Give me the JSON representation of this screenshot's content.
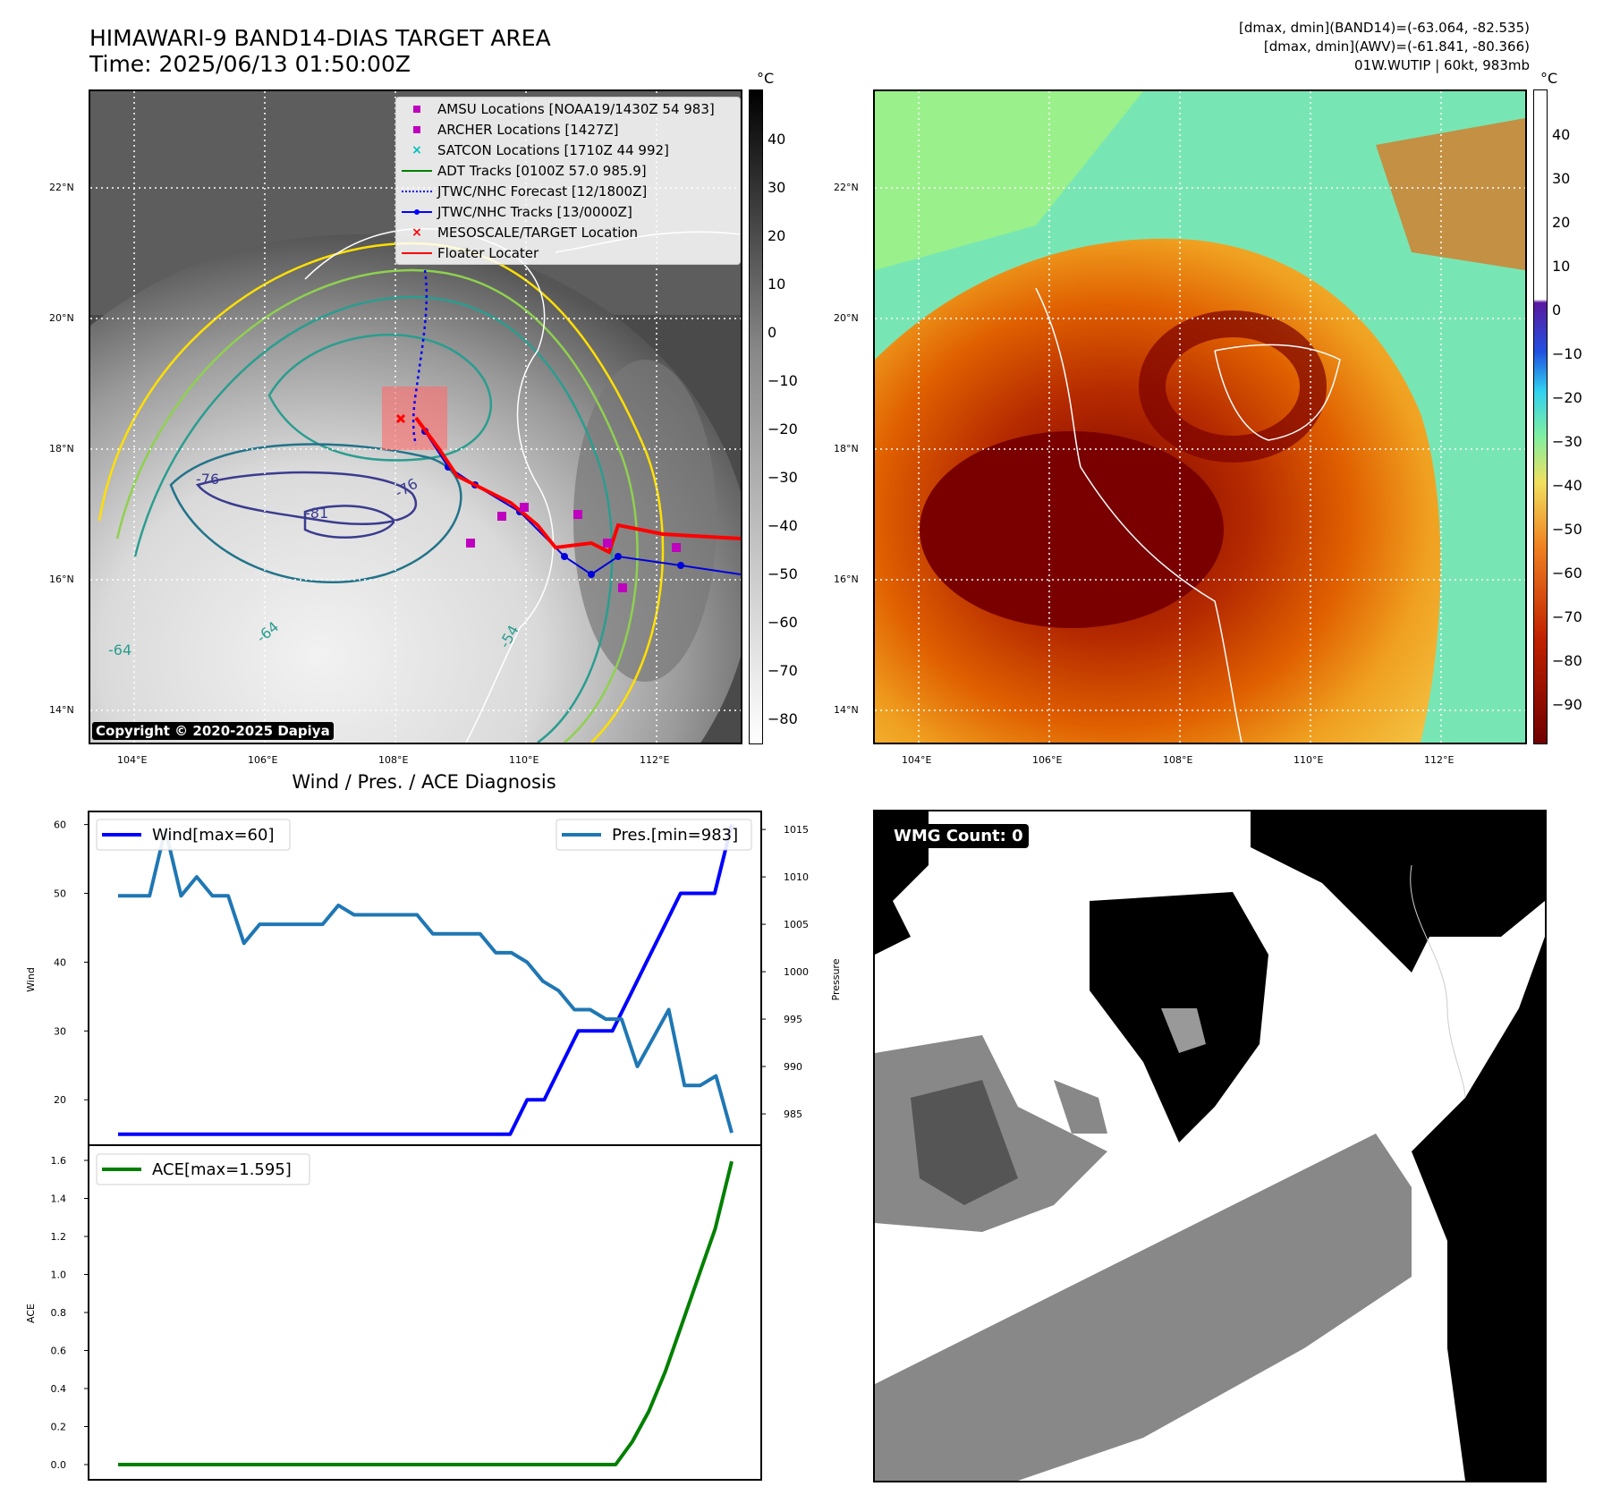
{
  "header": {
    "title_line1": "HIMAWARI-9 BAND14-DIAS TARGET AREA",
    "title_line2": "Time: 2025/06/13 01:50:00Z",
    "info_line1": "[dmax, dmin](BAND14)=(-63.064, -82.535)",
    "info_line2": "[dmax, dmin](AWV)=(-61.841, -80.366)",
    "info_line3": "01W.WUTIP | 60kt, 983mb"
  },
  "map_axes": {
    "lat_ticks": [
      "22°N",
      "20°N",
      "18°N",
      "16°N",
      "14°N"
    ],
    "lon_ticks": [
      "104°E",
      "106°E",
      "108°E",
      "110°E",
      "112°E"
    ]
  },
  "ir_panel": {
    "copyright": "Copyright © 2020-2025 Dapiya",
    "contour_labels": [
      "-76",
      "-76",
      "-81",
      "-64",
      "-64",
      "-54"
    ],
    "colorbar_unit": "°C",
    "colorbar_ticks": [
      "40",
      "30",
      "20",
      "10",
      "0",
      "−10",
      "−20",
      "−30",
      "−40",
      "−50",
      "−60",
      "−70",
      "−80"
    ],
    "legend": [
      {
        "label": "AMSU Locations [NOAA19/1430Z 54 983]",
        "symbol": "square",
        "color": "#bf00bf"
      },
      {
        "label": "ARCHER Locations [1427Z]",
        "symbol": "square",
        "color": "#bf00bf"
      },
      {
        "label": "SATCON Locations [1710Z 44 992]",
        "symbol": "x",
        "color": "#00bfbf"
      },
      {
        "label": "ADT Tracks [0100Z 57.0 985.9]",
        "symbol": "line",
        "color": "#008000"
      },
      {
        "label": "JTWC/NHC Forecast [12/1800Z]",
        "symbol": "dotted",
        "color": "#0000ff"
      },
      {
        "label": "JTWC/NHC Tracks [13/0000Z]",
        "symbol": "line-dot",
        "color": "#0000ff"
      },
      {
        "label": "MESOSCALE/TARGET Location",
        "symbol": "x",
        "color": "#ff0000"
      },
      {
        "label": "Floater Locater",
        "symbol": "line",
        "color": "#ff0000"
      }
    ]
  },
  "awv_panel": {
    "colorbar_unit": "°C",
    "colorbar_ticks": [
      "40",
      "30",
      "20",
      "10",
      "0",
      "−10",
      "−20",
      "−30",
      "−40",
      "−50",
      "−60",
      "−70",
      "−80",
      "−90"
    ]
  },
  "wmg_panel": {
    "badge": "WMG Count: 0"
  },
  "chart_data": [
    {
      "type": "line",
      "title": "Wind / Pres. / ACE Diagnosis",
      "ylabel": "Wind",
      "ylabel_right": "Pressure",
      "yticks": [
        "60",
        "50",
        "40",
        "30",
        "20"
      ],
      "yticks_right": [
        "1015",
        "1010",
        "1005",
        "1000",
        "995",
        "990",
        "985"
      ],
      "ylim": [
        13.4,
        61.9
      ],
      "ylim_right": [
        981.7,
        1016.9
      ],
      "series": [
        {
          "name": "Wind[max=60]",
          "axis": "left",
          "color": "#0000ff",
          "values": [
            15,
            15,
            15,
            15,
            15,
            15,
            15,
            15,
            15,
            15,
            15,
            15,
            15,
            15,
            15,
            15,
            15,
            15,
            15,
            15,
            15,
            15,
            15,
            15,
            20,
            20,
            25,
            30,
            30,
            30,
            35,
            40,
            45,
            50,
            50,
            50,
            60
          ]
        },
        {
          "name": "Pres.[min=983]",
          "axis": "right",
          "color": "#1f77b4",
          "values": [
            1008,
            1008,
            1008,
            1015,
            1008,
            1010,
            1008,
            1008,
            1003,
            1005,
            1005,
            1005,
            1005,
            1005,
            1007,
            1006,
            1006,
            1006,
            1006,
            1006,
            1004,
            1004,
            1004,
            1004,
            1002,
            1002,
            1001,
            999,
            998,
            996,
            996,
            995,
            995,
            990,
            993,
            996,
            988,
            988,
            989,
            983
          ]
        }
      ]
    },
    {
      "type": "line",
      "ylabel": "ACE",
      "yticks": [
        "1.6",
        "1.4",
        "1.2",
        "1.0",
        "0.8",
        "0.6",
        "0.4",
        "0.2",
        "0.0"
      ],
      "ylim": [
        -0.08,
        1.68
      ],
      "series": [
        {
          "name": "ACE[max=1.595]",
          "color": "#008000",
          "values": [
            0,
            0,
            0,
            0,
            0,
            0,
            0,
            0,
            0,
            0,
            0,
            0,
            0,
            0,
            0,
            0,
            0,
            0,
            0,
            0,
            0,
            0,
            0,
            0,
            0,
            0,
            0,
            0,
            0,
            0,
            0,
            0.12,
            0.28,
            0.49,
            0.74,
            0.99,
            1.24,
            1.595
          ]
        }
      ]
    }
  ]
}
